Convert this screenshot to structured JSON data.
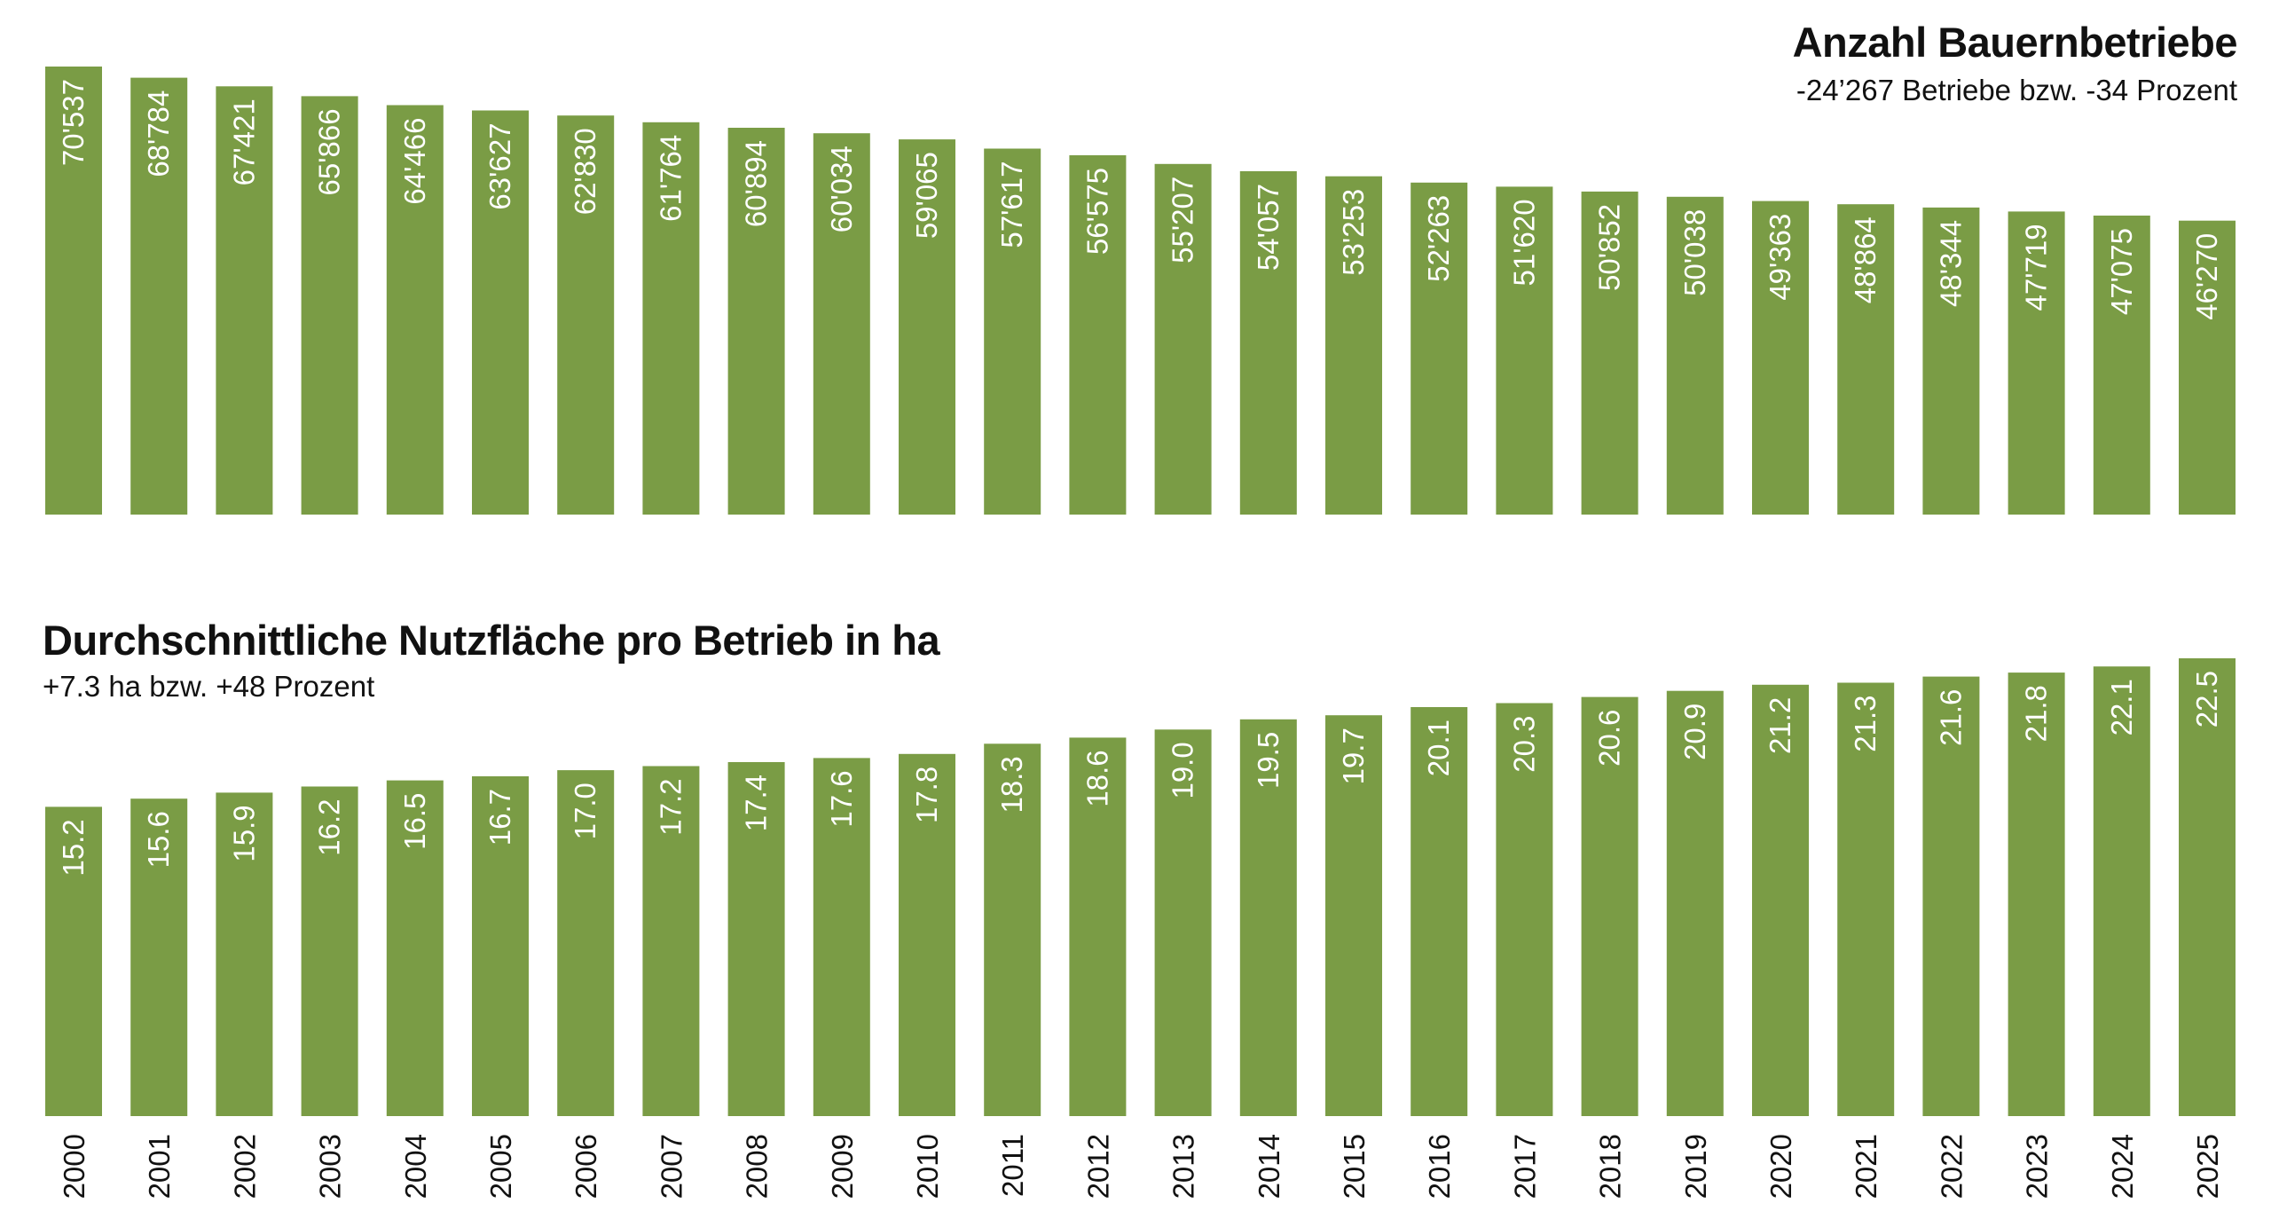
{
  "chart_data": [
    {
      "type": "bar",
      "title": "Anzahl Bauernbetriebe",
      "subtitle": "-24’267 Betriebe bzw. -34 Prozent",
      "categories": [
        "2000",
        "2001",
        "2002",
        "2003",
        "2004",
        "2005",
        "2006",
        "2007",
        "2008",
        "2009",
        "2010",
        "2011",
        "2012",
        "2013",
        "2014",
        "2015",
        "2016",
        "2017",
        "2018",
        "2019",
        "2020",
        "2021",
        "2022",
        "2023",
        "2024",
        "2025"
      ],
      "values": [
        70537,
        68784,
        67421,
        65866,
        64466,
        63627,
        62830,
        61764,
        60894,
        60034,
        59065,
        57617,
        56575,
        55207,
        54057,
        53253,
        52263,
        51620,
        50852,
        50038,
        49363,
        48864,
        48344,
        47719,
        47075,
        46270
      ],
      "labels": [
        "70'537",
        "68'784",
        "67'421",
        "65'866",
        "64'466",
        "63'627",
        "62'830",
        "61'764",
        "60'894",
        "60'034",
        "59'065",
        "57'617",
        "56'575",
        "55'207",
        "54'057",
        "53'253",
        "52'263",
        "51'620",
        "50'852",
        "50'038",
        "49'363",
        "48'864",
        "48'344",
        "47'719",
        "47'075",
        "46'270"
      ],
      "ylim": [
        0,
        70537
      ],
      "grid": false,
      "legend": "none"
    },
    {
      "type": "bar",
      "title": "Durchschnittliche Nutzfläche pro Betrieb in ha",
      "subtitle": "+7.3 ha bzw. +48 Prozent",
      "categories": [
        "2000",
        "2001",
        "2002",
        "2003",
        "2004",
        "2005",
        "2006",
        "2007",
        "2008",
        "2009",
        "2010",
        "2011",
        "2012",
        "2013",
        "2014",
        "2015",
        "2016",
        "2017",
        "2018",
        "2019",
        "2020",
        "2021",
        "2022",
        "2023",
        "2024",
        "2025"
      ],
      "values": [
        15.2,
        15.6,
        15.9,
        16.2,
        16.5,
        16.7,
        17.0,
        17.2,
        17.4,
        17.6,
        17.8,
        18.3,
        18.6,
        19.0,
        19.5,
        19.7,
        20.1,
        20.3,
        20.6,
        20.9,
        21.2,
        21.3,
        21.6,
        21.8,
        22.1,
        22.5
      ],
      "labels": [
        "15.2",
        "15.6",
        "15.9",
        "16.2",
        "16.5",
        "16.7",
        "17.0",
        "17.2",
        "17.4",
        "17.6",
        "17.8",
        "18.3",
        "18.6",
        "19.0",
        "19.5",
        "19.7",
        "20.1",
        "20.3",
        "20.6",
        "20.9",
        "21.2",
        "21.3",
        "21.6",
        "21.8",
        "22.1",
        "22.5"
      ],
      "ylim": [
        0,
        22.5
      ],
      "grid": false,
      "legend": "none"
    }
  ],
  "colors": {
    "bar": "#7a9c45",
    "label": "#ffffff",
    "text": "#111111"
  }
}
